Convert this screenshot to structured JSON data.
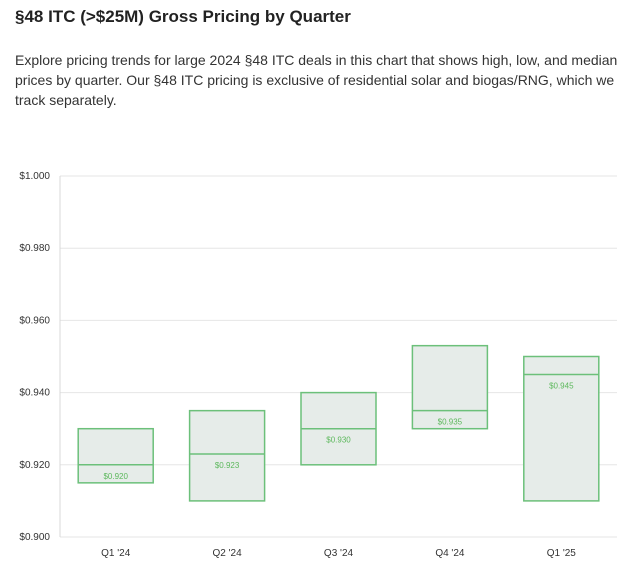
{
  "header": {
    "title": "§48 ITC (>$25M) Gross Pricing by Quarter",
    "description": "Explore pricing trends for large 2024 §48 ITC deals in this chart that shows high, low, and median prices by quarter. Our §48 ITC pricing is exclusive of residential solar and biogas/RNG, which we track separately."
  },
  "chart_data": {
    "type": "floating-bar",
    "title": "",
    "xlabel": "",
    "ylabel": "",
    "ylim": [
      0.9,
      1.0
    ],
    "yticks": [
      0.9,
      0.92,
      0.94,
      0.96,
      0.98,
      1.0
    ],
    "ytick_labels": [
      "$0.900",
      "$0.920",
      "$0.940",
      "$0.960",
      "$0.980",
      "$1.000"
    ],
    "grid": true,
    "categories": [
      "Q1 '24",
      "Q2 '24",
      "Q3 '24",
      "Q4 '24",
      "Q1 '25"
    ],
    "low": [
      0.915,
      0.91,
      0.92,
      0.93,
      0.91
    ],
    "high": [
      0.93,
      0.935,
      0.94,
      0.953,
      0.95
    ],
    "median": [
      0.92,
      0.923,
      0.93,
      0.935,
      0.945
    ],
    "median_labels": [
      "$0.920",
      "$0.923",
      "$0.930",
      "$0.935",
      "$0.945"
    ],
    "colors": {
      "stroke": "#6cc07a",
      "fill": "#e6ece9",
      "grid": "#e6e6e6",
      "label": "#5cb85c"
    }
  }
}
